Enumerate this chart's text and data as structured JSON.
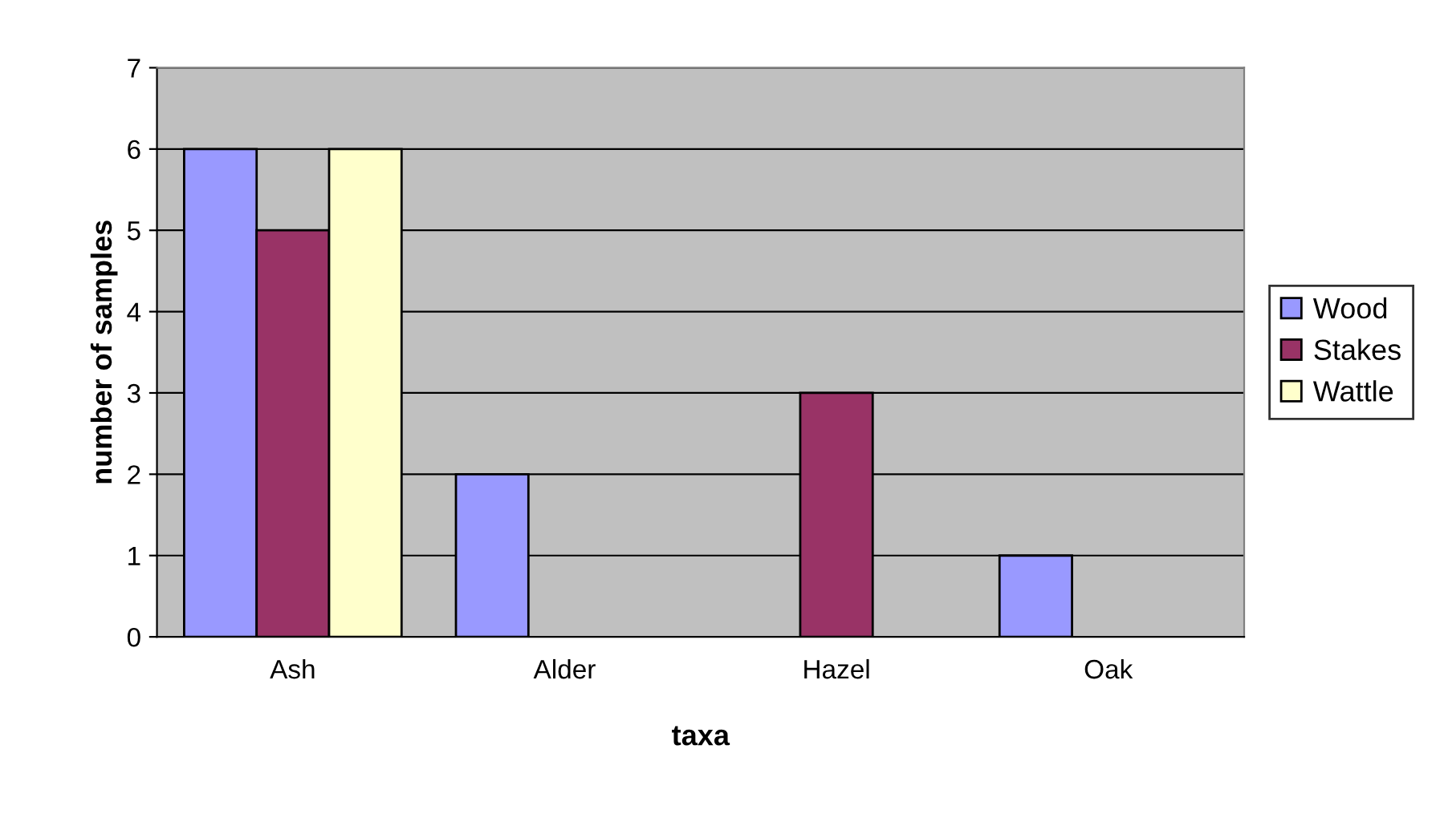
{
  "chart_data": {
    "type": "bar",
    "xlabel": "taxa",
    "ylabel": "number of samples",
    "categories": [
      "Ash",
      "Alder",
      "Hazel",
      "Oak"
    ],
    "series": [
      {
        "name": "Wood",
        "color": "#9999ff",
        "values": [
          6,
          2,
          0,
          1
        ]
      },
      {
        "name": "Stakes",
        "color": "#993366",
        "values": [
          5,
          0,
          3,
          0
        ]
      },
      {
        "name": "Wattle",
        "color": "#ffffcc",
        "values": [
          6,
          0,
          0,
          0
        ]
      }
    ],
    "ylim": [
      0,
      7
    ],
    "yticks": [
      0,
      1,
      2,
      3,
      4,
      5,
      6,
      7
    ],
    "grid": "y",
    "legend": "right"
  }
}
